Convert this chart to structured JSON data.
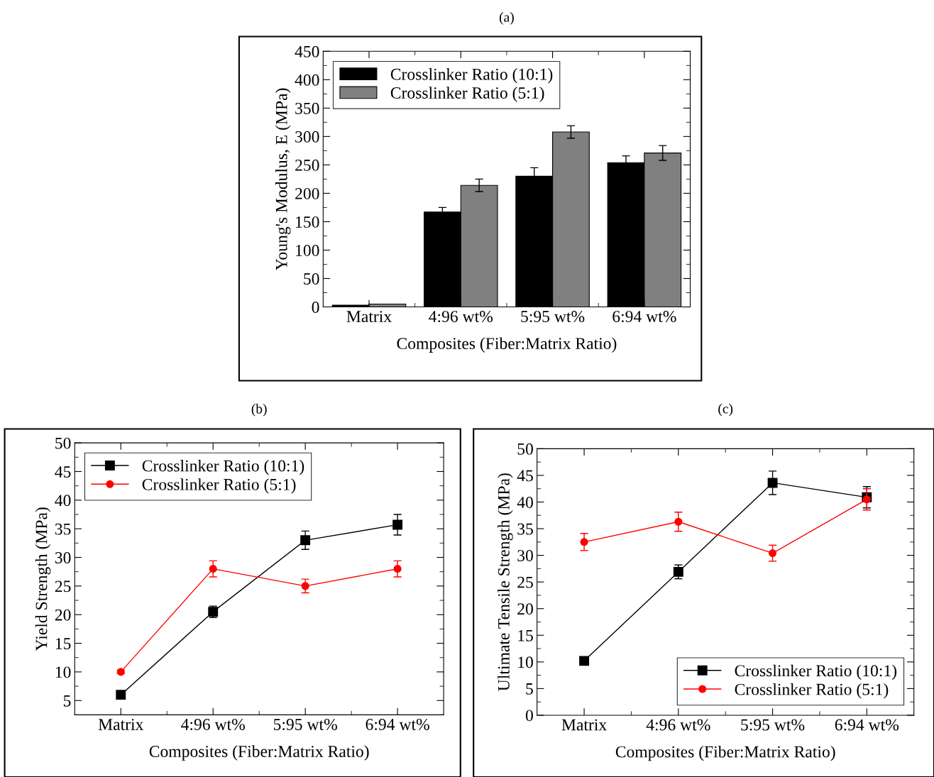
{
  "chart_data": [
    {
      "type": "bar",
      "title": "(a)",
      "xlabel": "Composites (Fiber:Matrix Ratio)",
      "ylabel": "Young's Modulus, E (MPa)",
      "categories": [
        "Matrix",
        "4:96 wt%",
        "5:95 wt%",
        "6:94 wt%"
      ],
      "series": [
        {
          "name": "Crosslinker Ratio (10:1)",
          "color": "#000000",
          "values": [
            3,
            167,
            230,
            254
          ],
          "errors": [
            null,
            8,
            15,
            12
          ]
        },
        {
          "name": "Crosslinker Ratio (5:1)",
          "color": "#808080",
          "values": [
            5,
            214,
            308,
            271
          ],
          "errors": [
            null,
            11,
            11,
            13
          ]
        }
      ],
      "ylim": [
        0,
        450
      ],
      "yticks": [
        0,
        50,
        100,
        150,
        200,
        250,
        300,
        350,
        400,
        450
      ],
      "legend": "top left",
      "grid": false
    },
    {
      "type": "line",
      "title": "(b)",
      "xlabel": "Composites (Fiber:Matrix Ratio)",
      "ylabel": "Yield Strength (MPa)",
      "categories": [
        "Matrix",
        "4:96 wt%",
        "5:95 wt%",
        "6:94 wt%"
      ],
      "series": [
        {
          "name": "Crosslinker Ratio (10:1)",
          "color": "#000000",
          "marker": "square",
          "values": [
            6,
            20.5,
            33,
            35.7
          ],
          "errors": [
            null,
            1,
            1.6,
            1.8
          ]
        },
        {
          "name": "Crosslinker Ratio (5:1)",
          "color": "#ff0000",
          "marker": "circle",
          "values": [
            10,
            28,
            25,
            28
          ],
          "errors": [
            0.3,
            1.4,
            1.2,
            1.4
          ]
        }
      ],
      "ylim": [
        2.5,
        50
      ],
      "yticks": [
        5,
        10,
        15,
        20,
        25,
        30,
        35,
        40,
        45,
        50
      ],
      "legend": "top left",
      "grid": false,
      "line_style": "solid"
    },
    {
      "type": "line",
      "title": "(c)",
      "xlabel": "Composites (Fiber:Matrix Ratio)",
      "ylabel": "Ultimate Tensile Strength (MPa)",
      "categories": [
        "Matrix",
        "4:96 wt%",
        "5:95 wt%",
        "6:94 wt%"
      ],
      "series": [
        {
          "name": "Crosslinker Ratio (10:1)",
          "color": "#000000",
          "marker": "square",
          "values": [
            10.2,
            26.9,
            43.6,
            40.9
          ],
          "errors": [
            null,
            1.3,
            2.2,
            2
          ]
        },
        {
          "name": "Crosslinker Ratio (5:1)",
          "color": "#ff0000",
          "marker": "circle",
          "values": [
            32.5,
            36.3,
            30.4,
            40.5
          ],
          "errors": [
            1.6,
            1.8,
            1.5,
            2
          ]
        }
      ],
      "ylim": [
        0,
        50
      ],
      "yticks": [
        0,
        5,
        10,
        15,
        20,
        25,
        30,
        35,
        40,
        45,
        50
      ],
      "legend": "bottom right",
      "grid": false,
      "line_style": "solid"
    }
  ]
}
